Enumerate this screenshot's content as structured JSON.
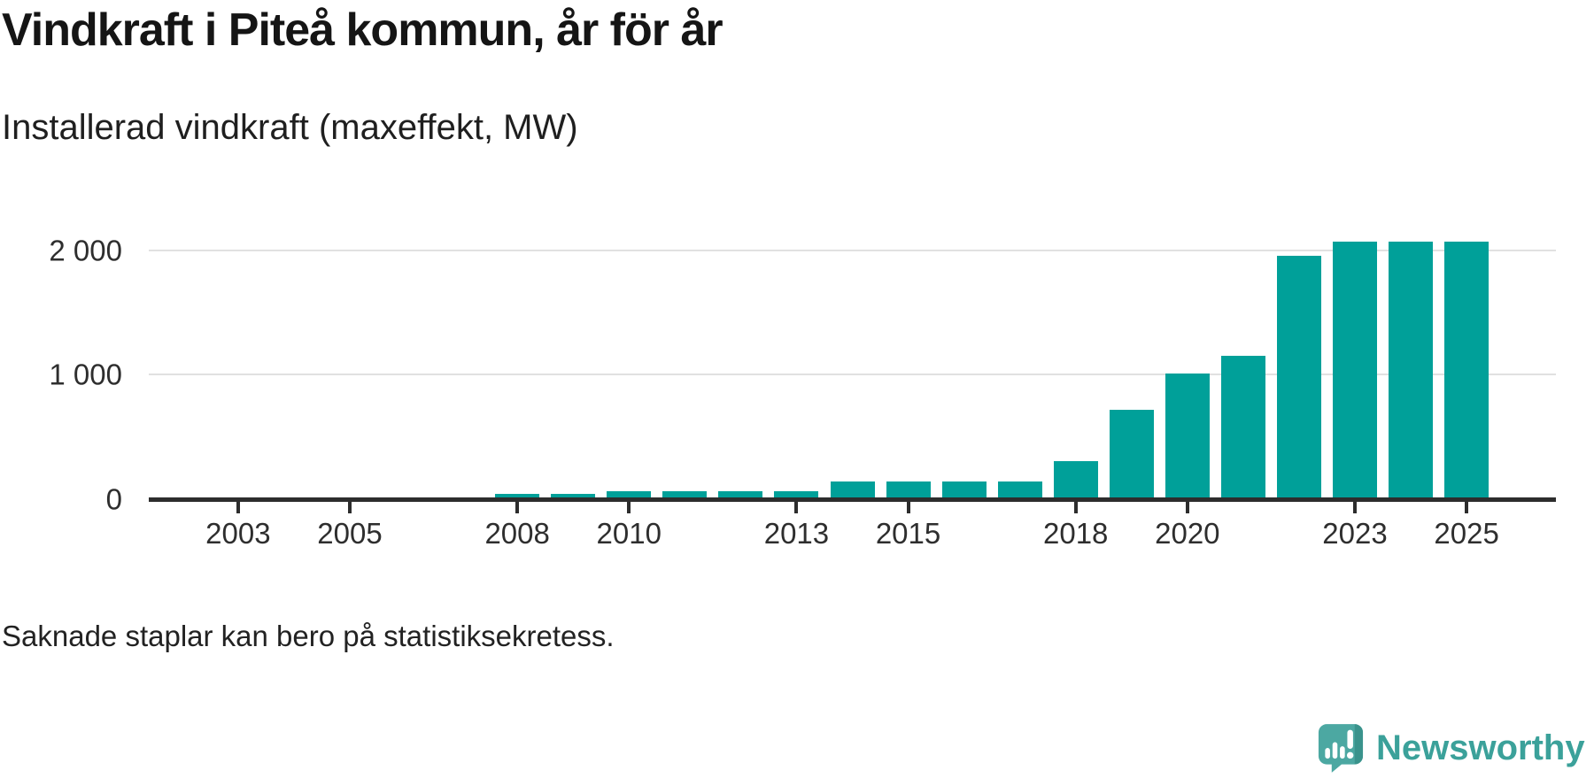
{
  "header": {
    "title": "Vindkraft i Piteå kommun, år för år",
    "subtitle": "Installerad vindkraft (maxeffekt, MW)"
  },
  "footnote": "Saknade staplar kan bero på statistiksekretess.",
  "branding": {
    "name": "Newsworthy",
    "icon": "newsworthy-speech-bubble-bar-chart-icon"
  },
  "colors": {
    "bar": "#00a099",
    "axis": "#2d2d2d",
    "grid": "#e1e1e1",
    "tick_text": "#2e2e2e",
    "logo_text": "#3ba19a",
    "logo_icon": "#4ca8a2",
    "logo_icon_shade": "#3a938c",
    "logo_icon_glyphs": "#ffffff"
  },
  "chart_data": {
    "type": "bar",
    "title": "Vindkraft i Piteå kommun, år för år",
    "ylabel": "Installerad vindkraft (maxeffekt, MW)",
    "unit": "MW",
    "categories": [
      2002,
      2003,
      2004,
      2005,
      2006,
      2007,
      2008,
      2009,
      2010,
      2011,
      2012,
      2013,
      2014,
      2015,
      2016,
      2017,
      2018,
      2019,
      2020,
      2021,
      2022,
      2023,
      2024,
      2025
    ],
    "values": [
      null,
      null,
      null,
      null,
      null,
      null,
      45,
      45,
      65,
      65,
      65,
      65,
      145,
      145,
      145,
      145,
      305,
      720,
      1010,
      1150,
      1955,
      2070,
      2070,
      2070
    ],
    "missing_values_note": "Saknade staplar kan bero på statistiksekretess.",
    "x_tick_years": [
      2003,
      2005,
      2008,
      2010,
      2013,
      2015,
      2018,
      2020,
      2023,
      2025
    ],
    "y_ticks": [
      {
        "value": 0,
        "label": "0"
      },
      {
        "value": 1000,
        "label": "1 000"
      },
      {
        "value": 2000,
        "label": "2 000"
      }
    ],
    "ylim": [
      0,
      2318
    ],
    "xlim": [
      2001.4,
      2026.6
    ],
    "grid": "horizontal",
    "legend": "none"
  }
}
